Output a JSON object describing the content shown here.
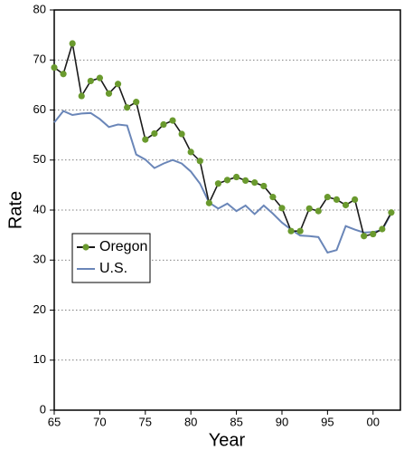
{
  "chart_data": {
    "type": "line",
    "x_label": "Year",
    "y_label": "Rate",
    "x": [
      1965,
      1966,
      1967,
      1968,
      1969,
      1970,
      1971,
      1972,
      1973,
      1974,
      1975,
      1976,
      1977,
      1978,
      1979,
      1980,
      1981,
      1982,
      1983,
      1984,
      1985,
      1986,
      1987,
      1988,
      1989,
      1990,
      1991,
      1992,
      1993,
      1994,
      1995,
      1996,
      1997,
      1998,
      1999,
      2000,
      2001,
      2002
    ],
    "series": [
      {
        "name": "Oregon",
        "color": "#1a1a1a",
        "marker_color": "#6a9a2e",
        "values": [
          68.5,
          67.2,
          73.3,
          62.8,
          65.8,
          66.4,
          63.3,
          65.2,
          60.5,
          61.6,
          54.1,
          55.3,
          57.1,
          57.9,
          55.2,
          51.6,
          49.8,
          41.4,
          45.3,
          46.0,
          46.6,
          45.9,
          45.5,
          44.8,
          42.6,
          40.4,
          35.8,
          35.8,
          40.3,
          39.8,
          42.6,
          42.1,
          41.0,
          42.1,
          34.8,
          35.2,
          36.2,
          39.5
        ]
      },
      {
        "name": "U.S.",
        "color": "#6a86b8",
        "values": [
          57.5,
          59.8,
          59.0,
          59.3,
          59.4,
          58.2,
          56.6,
          57.1,
          56.9,
          51.1,
          50.1,
          48.4,
          49.3,
          50.0,
          49.3,
          47.7,
          45.3,
          41.5,
          40.3,
          41.3,
          39.8,
          40.9,
          39.2,
          40.9,
          39.3,
          37.5,
          36.1,
          34.9,
          34.8,
          34.6,
          31.5,
          32.0,
          36.8,
          36.1,
          35.5,
          35.6,
          36.0,
          39.4
        ]
      }
    ],
    "xlim": [
      1965,
      2003
    ],
    "xticks": [
      {
        "value": 1965,
        "label": "65"
      },
      {
        "value": 1970,
        "label": "70"
      },
      {
        "value": 1975,
        "label": "75"
      },
      {
        "value": 1980,
        "label": "80"
      },
      {
        "value": 1985,
        "label": "85"
      },
      {
        "value": 1990,
        "label": "90"
      },
      {
        "value": 1995,
        "label": "95"
      },
      {
        "value": 2000,
        "label": "00"
      }
    ],
    "ylim": [
      0,
      80
    ],
    "yticks": [
      0,
      10,
      20,
      30,
      40,
      50,
      60,
      70,
      80
    ],
    "grid": true,
    "legend": "left"
  }
}
